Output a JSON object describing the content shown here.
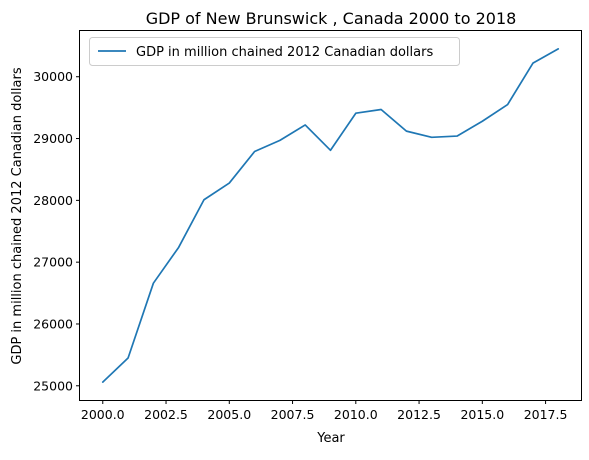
{
  "chart_data": {
    "type": "line",
    "title": "GDP of New Brunswick , Canada 2000 to 2018",
    "xlabel": "Year",
    "ylabel": "GDP in million chained 2012 Canadian dollars",
    "xlim": [
      1999.1,
      2018.9
    ],
    "ylim": [
      24770,
      30740
    ],
    "x_ticks": [
      2000.0,
      2002.5,
      2005.0,
      2007.5,
      2010.0,
      2012.5,
      2015.0,
      2017.5
    ],
    "x_tick_labels": [
      "2000.0",
      "2002.5",
      "2005.0",
      "2007.5",
      "2010.0",
      "2012.5",
      "2015.0",
      "2017.5"
    ],
    "y_ticks": [
      25000,
      26000,
      27000,
      28000,
      29000,
      30000
    ],
    "y_tick_labels": [
      "25000",
      "26000",
      "27000",
      "28000",
      "29000",
      "30000"
    ],
    "grid": false,
    "legend_position": "top-left",
    "series": [
      {
        "name": "GDP in million chained 2012 Canadian dollars",
        "color": "#1f77b4",
        "x": [
          2000,
          2001,
          2002,
          2003,
          2004,
          2005,
          2006,
          2007,
          2008,
          2009,
          2010,
          2011,
          2012,
          2013,
          2014,
          2015,
          2016,
          2017,
          2018
        ],
        "y": [
          25060,
          25450,
          26660,
          27240,
          28010,
          28280,
          28790,
          28970,
          29220,
          28810,
          29410,
          29470,
          29120,
          29020,
          29040,
          29280,
          29550,
          30220,
          30450
        ]
      }
    ]
  }
}
